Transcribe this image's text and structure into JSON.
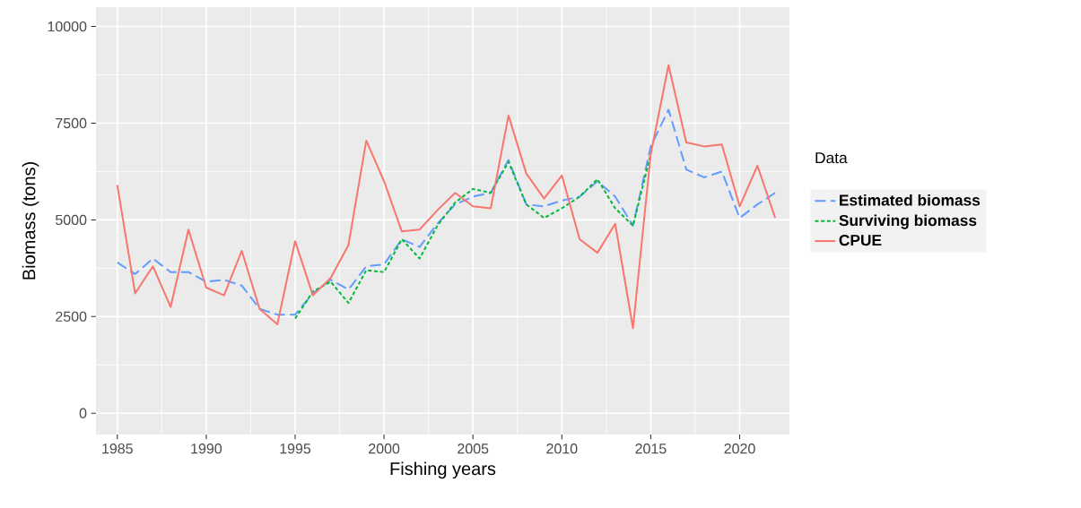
{
  "chart_data": {
    "type": "line",
    "xlabel": "Fishing years",
    "ylabel": "Biomass (tons)",
    "legend_title": "Data",
    "legend": "right",
    "grid": true,
    "x": [
      1985,
      1986,
      1987,
      1988,
      1989,
      1990,
      1991,
      1992,
      1993,
      1994,
      1995,
      1996,
      1997,
      1998,
      1999,
      2000,
      2001,
      2002,
      2003,
      2004,
      2005,
      2006,
      2007,
      2008,
      2009,
      2010,
      2011,
      2012,
      2013,
      2014,
      2015,
      2016,
      2017,
      2018,
      2019,
      2020,
      2021,
      2022
    ],
    "xlim": [
      1983.8,
      2022.8
    ],
    "ylim": [
      -550,
      10500
    ],
    "xticks": [
      1985,
      1990,
      1995,
      2000,
      2005,
      2010,
      2015,
      2020
    ],
    "yticks": [
      0,
      2500,
      5000,
      7500,
      10000
    ],
    "series": [
      {
        "name": "Estimated biomass",
        "color": "#619cff",
        "line_style": "dashed",
        "values": [
          3900,
          3600,
          4000,
          3650,
          3650,
          3400,
          3450,
          3300,
          2700,
          2550,
          2550,
          3100,
          3450,
          3200,
          3800,
          3850,
          4500,
          4300,
          4900,
          5400,
          5600,
          5700,
          6550,
          5400,
          5350,
          5500,
          5600,
          6000,
          5600,
          4850,
          6900,
          7850,
          6300,
          6100,
          6250,
          5050,
          5400,
          5700
        ]
      },
      {
        "name": "Surviving biomass",
        "color": "#00ba38",
        "line_style": "dotted",
        "values": [
          null,
          null,
          null,
          null,
          null,
          null,
          null,
          null,
          null,
          null,
          2450,
          3150,
          3400,
          2850,
          3700,
          3650,
          4500,
          4000,
          4850,
          5450,
          5800,
          5700,
          6500,
          5400,
          5050,
          5300,
          5600,
          6050,
          5300,
          4850,
          6700,
          null,
          null,
          null,
          null,
          null,
          null,
          null
        ]
      },
      {
        "name": "CPUE",
        "color": "#f8766d",
        "line_style": "solid",
        "values": [
          5900,
          3100,
          3800,
          2750,
          4750,
          3250,
          3050,
          4200,
          2700,
          2300,
          4450,
          3050,
          3500,
          4350,
          7050,
          6000,
          4700,
          4750,
          5250,
          5700,
          5350,
          5300,
          7700,
          6200,
          5550,
          6150,
          4500,
          4150,
          4900,
          2200,
          6700,
          9000,
          7000,
          6900,
          6950,
          5350,
          6400,
          5050
        ]
      }
    ]
  }
}
